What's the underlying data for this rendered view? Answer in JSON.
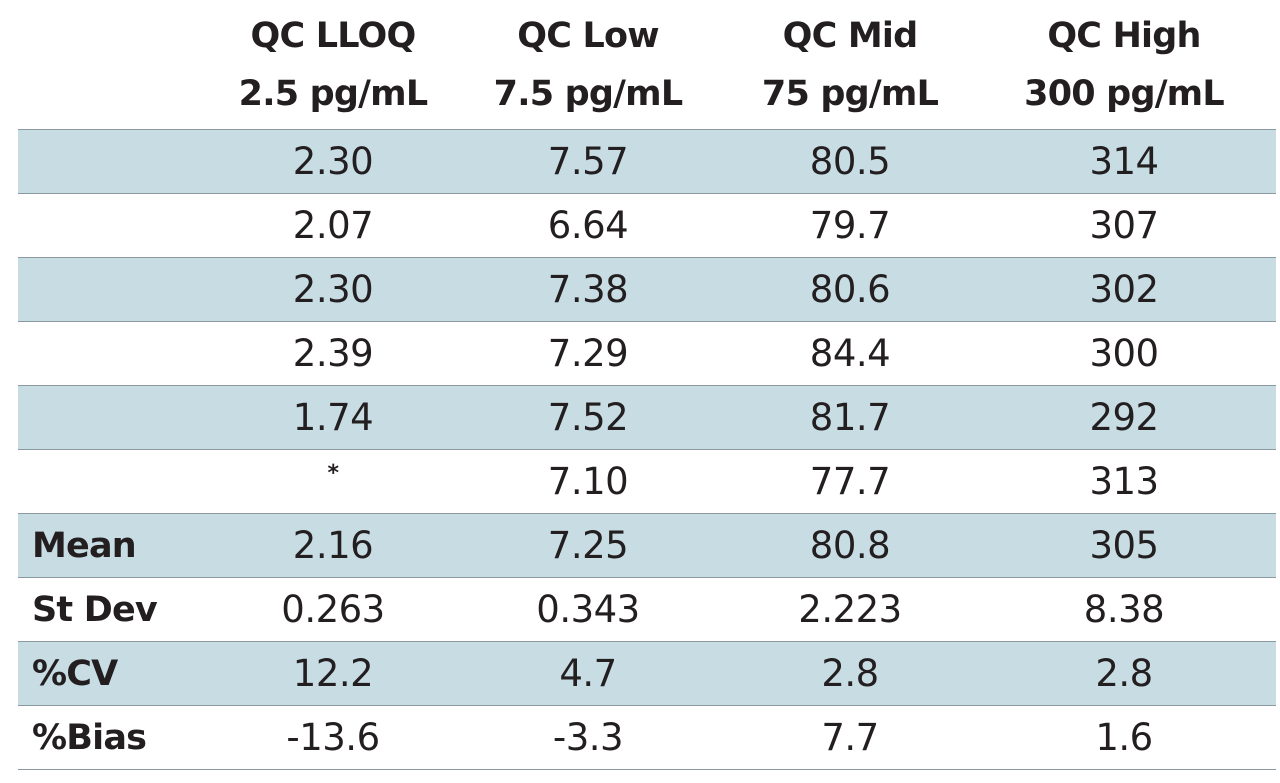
{
  "chart_data": {
    "type": "table",
    "columns": [
      {
        "line1": "QC LLOQ",
        "line2": "2.5 pg/mL"
      },
      {
        "line1": "QC Low",
        "line2": "7.5 pg/mL"
      },
      {
        "line1": "QC Mid",
        "line2": "75 pg/mL"
      },
      {
        "line1": "QC High",
        "line2": "300 pg/mL"
      }
    ],
    "rows": [
      {
        "label": "",
        "values": [
          "2.30",
          "7.57",
          "80.5",
          "314"
        ]
      },
      {
        "label": "",
        "values": [
          "2.07",
          "6.64",
          "79.7",
          "307"
        ]
      },
      {
        "label": "",
        "values": [
          "2.30",
          "7.38",
          "80.6",
          "302"
        ]
      },
      {
        "label": "",
        "values": [
          "2.39",
          "7.29",
          "84.4",
          "300"
        ]
      },
      {
        "label": "",
        "values": [
          "1.74",
          "7.52",
          "81.7",
          "292"
        ]
      },
      {
        "label": "",
        "values": [
          "*",
          "7.10",
          "77.7",
          "313"
        ]
      },
      {
        "label": "Mean",
        "values": [
          "2.16",
          "7.25",
          "80.8",
          "305"
        ]
      },
      {
        "label": "St Dev",
        "values": [
          "0.263",
          "0.343",
          "2.223",
          "8.38"
        ]
      },
      {
        "label": "%CV",
        "values": [
          "12.2",
          "4.7",
          "2.8",
          "2.8"
        ]
      },
      {
        "label": "%Bias",
        "values": [
          "-13.6",
          "-3.3",
          "7.7",
          "1.6"
        ]
      }
    ],
    "row_shading": "alternating, light blue (#c7dce3) on first body row"
  }
}
